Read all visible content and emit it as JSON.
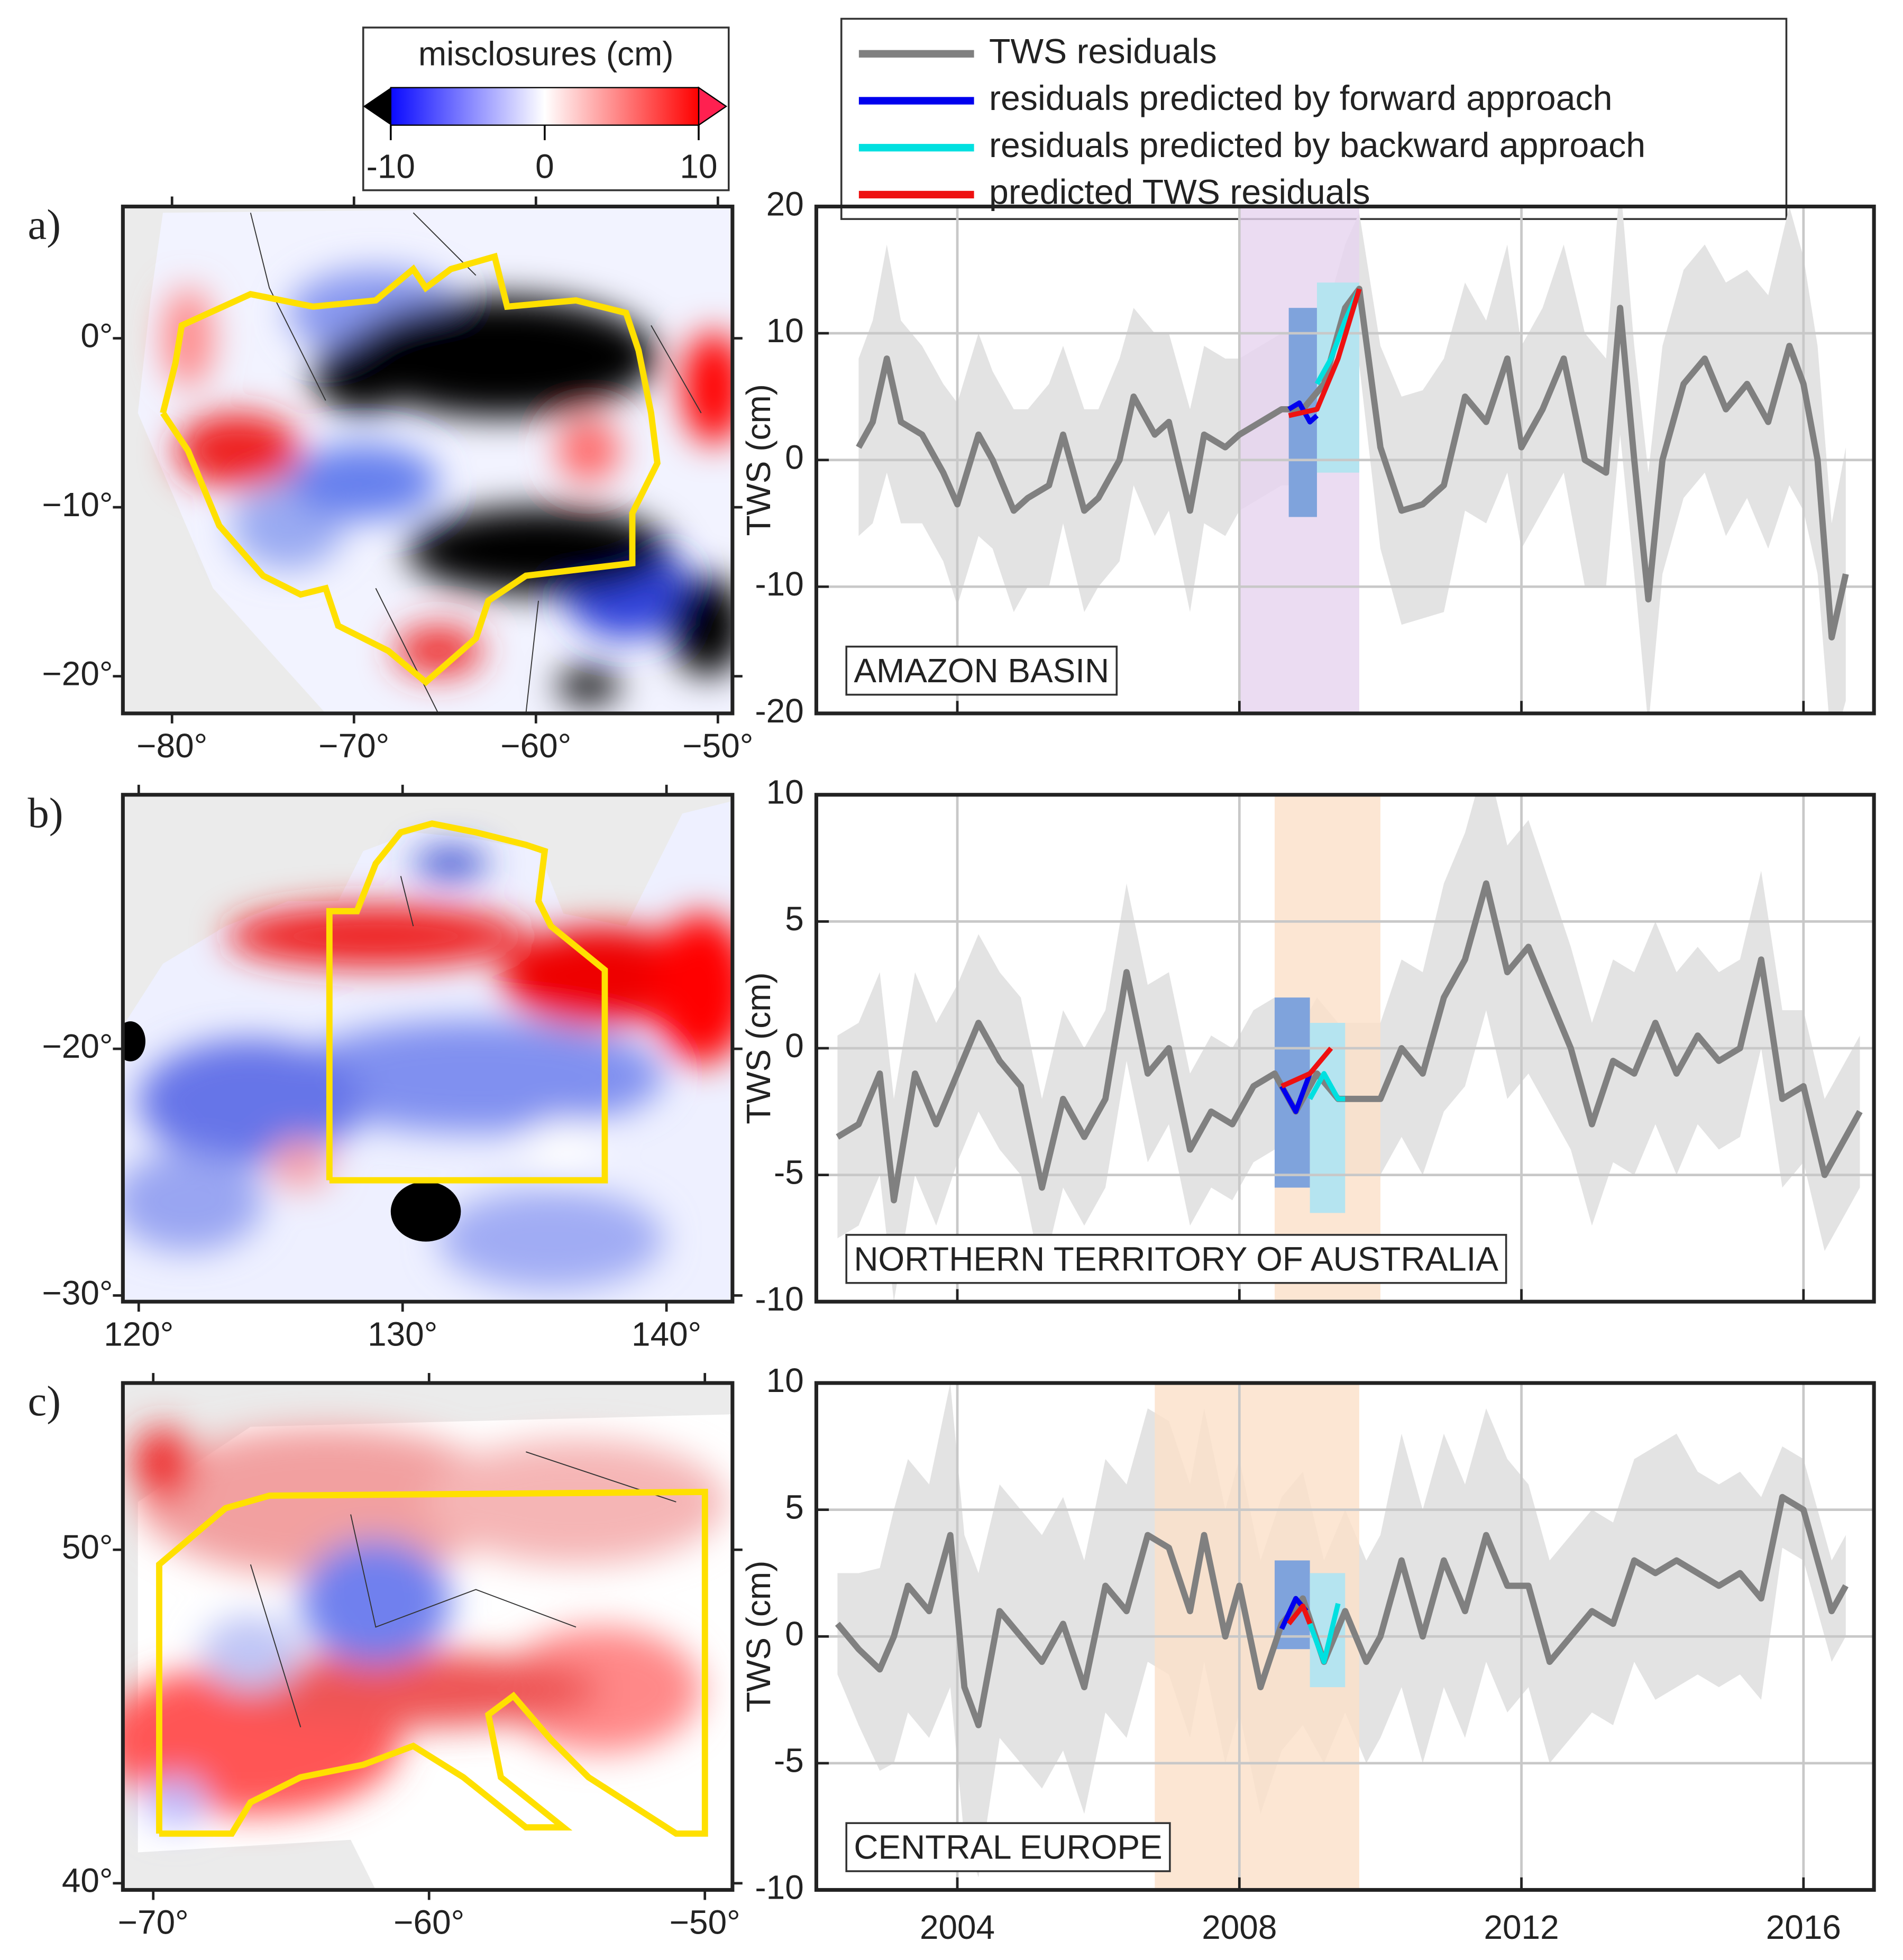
{
  "colorbar": {
    "title": "misclosures (cm)",
    "clim": [
      -10,
      10
    ],
    "ticks": [
      -10,
      0,
      10
    ]
  },
  "time_axis": {
    "xlim": [
      2002,
      2017
    ],
    "xticks": [
      2004,
      2008,
      2012,
      2016
    ]
  },
  "chart_data": [
    {
      "type": "line",
      "label": "a)",
      "region": "AMAZON BASIN",
      "ylabel": "TWS (cm)",
      "ylim": [
        -20,
        20
      ],
      "yticks": [
        -20,
        -10,
        0,
        10,
        20
      ],
      "grid": true,
      "map": {
        "xlim": [
          -82.7,
          -49.2
        ],
        "ylim": [
          -22.2,
          7.8
        ],
        "xticks": [
          {
            "value": -80,
            "label": "−80°"
          },
          {
            "value": -70,
            "label": "−70°"
          },
          {
            "value": -60,
            "label": "−60°"
          },
          {
            "value": -50,
            "label": "−50°"
          }
        ],
        "yticks": [
          {
            "value": 0,
            "label": "0°"
          },
          {
            "value": -10,
            "label": "−10°"
          },
          {
            "value": -20,
            "label": "−20°"
          }
        ]
      },
      "spans": [
        {
          "x": [
            2008,
            2009.7
          ],
          "color": "#e6d3ef"
        }
      ],
      "boxes": [
        {
          "x": [
            2008.7,
            2009.1
          ],
          "y": [
            -4.5,
            12
          ],
          "color": "#7fa3dc"
        },
        {
          "x": [
            2009.1,
            2009.7
          ],
          "y": [
            -1,
            14
          ],
          "color": "#b5e4f0"
        }
      ],
      "series": [
        {
          "name": "TWS residuals",
          "color": "#808080",
          "x": [
            2002.6,
            2002.8,
            2003.0,
            2003.2,
            2003.5,
            2003.8,
            2004.0,
            2004.3,
            2004.5,
            2004.8,
            2005.0,
            2005.3,
            2005.5,
            2005.8,
            2006.0,
            2006.3,
            2006.5,
            2006.8,
            2007.0,
            2007.3,
            2007.5,
            2007.8,
            2008.0,
            2008.3,
            2008.6,
            2008.9,
            2009.2,
            2009.5,
            2009.7,
            2010.0,
            2010.3,
            2010.6,
            2010.9,
            2011.2,
            2011.5,
            2011.8,
            2012.0,
            2012.3,
            2012.6,
            2012.9,
            2013.2,
            2013.4,
            2013.6,
            2013.8,
            2014.0,
            2014.3,
            2014.6,
            2014.9,
            2015.2,
            2015.5,
            2015.8,
            2016.0,
            2016.2,
            2016.4,
            2016.6
          ],
          "values": [
            1,
            3,
            8,
            3,
            2,
            -1,
            -3.5,
            2,
            0,
            -4,
            -3,
            -2,
            2,
            -4,
            -3,
            0,
            5,
            2,
            3,
            -4,
            2,
            1,
            2,
            3,
            4,
            4,
            6,
            12,
            13.5,
            1,
            -4,
            -3.5,
            -2,
            5,
            3,
            8,
            1,
            4,
            8,
            0,
            -1,
            12,
            0,
            -11,
            0,
            6,
            8,
            4,
            6,
            3,
            9,
            6,
            0,
            -14,
            -9
          ],
          "errors": [
            7,
            8,
            9,
            8,
            7,
            7,
            8,
            8,
            7,
            8,
            7,
            8,
            7,
            8,
            7,
            8,
            7,
            8,
            7,
            8,
            7,
            7,
            6,
            6,
            6,
            6,
            5,
            5,
            6,
            8,
            9,
            9,
            10,
            9,
            8,
            9,
            8,
            8,
            9,
            10,
            9,
            10,
            9,
            10,
            9,
            9,
            9,
            10,
            9,
            10,
            11,
            10,
            9,
            9,
            10
          ]
        },
        {
          "name": "residuals predicted by forward approach",
          "color": "#0000ee",
          "x": [
            2008.7,
            2008.85,
            2009.0,
            2009.1
          ],
          "values": [
            4,
            4.5,
            3,
            3.5
          ]
        },
        {
          "name": "residuals predicted by backward approach",
          "color": "#00e0e0",
          "x": [
            2009.1,
            2009.3,
            2009.5,
            2009.7
          ],
          "values": [
            6,
            8,
            11,
            13.5
          ]
        },
        {
          "name": "predicted TWS residuals",
          "color": "#ee1111",
          "x": [
            2008.7,
            2009.1,
            2009.4,
            2009.7
          ],
          "values": [
            3.5,
            4,
            8,
            13.5
          ]
        }
      ]
    },
    {
      "type": "line",
      "label": "b)",
      "region": "NORTHERN TERRITORY OF AUSTRALIA",
      "ylabel": "TWS (cm)",
      "ylim": [
        -10,
        10
      ],
      "yticks": [
        -10,
        -5,
        0,
        5,
        10
      ],
      "grid": true,
      "map": {
        "xlim": [
          119.4,
          142.5
        ],
        "ylim": [
          -30.25,
          -9.7
        ],
        "xticks": [
          {
            "value": 120,
            "label": "120°"
          },
          {
            "value": 130,
            "label": "130°"
          },
          {
            "value": 140,
            "label": "140°"
          }
        ],
        "yticks": [
          {
            "value": -20,
            "label": "−20°"
          },
          {
            "value": -30,
            "label": "−30°"
          }
        ]
      },
      "spans": [
        {
          "x": [
            2008.5,
            2010
          ],
          "color": "#fbe0c8"
        }
      ],
      "boxes": [
        {
          "x": [
            2008.5,
            2009
          ],
          "y": [
            -5.5,
            2
          ],
          "color": "#7fa3dc"
        },
        {
          "x": [
            2009,
            2009.5
          ],
          "y": [
            -6.5,
            1
          ],
          "color": "#b5e4f0"
        }
      ],
      "series": [
        {
          "color": "#808080",
          "x": [
            2002.3,
            2002.6,
            2002.9,
            2003.1,
            2003.4,
            2003.7,
            2004.0,
            2004.3,
            2004.6,
            2004.9,
            2005.2,
            2005.5,
            2005.8,
            2006.1,
            2006.4,
            2006.7,
            2007.0,
            2007.3,
            2007.6,
            2007.9,
            2008.2,
            2008.5,
            2008.8,
            2009.1,
            2009.4,
            2009.7,
            2010.0,
            2010.3,
            2010.6,
            2010.9,
            2011.2,
            2011.5,
            2011.8,
            2012.1,
            2012.4,
            2012.7,
            2013.0,
            2013.3,
            2013.6,
            2013.9,
            2014.2,
            2014.5,
            2014.8,
            2015.1,
            2015.4,
            2015.7,
            2016.0,
            2016.3,
            2016.6,
            2016.8
          ],
          "values": [
            -3.5,
            -3,
            -1,
            -6,
            -1,
            -3,
            -1,
            1,
            -0.5,
            -1.5,
            -5.5,
            -2,
            -3.5,
            -2,
            3,
            -1,
            0,
            -4,
            -2.5,
            -3,
            -1.5,
            -1,
            -2.5,
            -1,
            -2,
            -2,
            -2,
            0,
            -1,
            2,
            3.5,
            6.5,
            3,
            4,
            2,
            0,
            -3,
            -0.5,
            -1,
            1,
            -1,
            0.5,
            -0.5,
            0,
            3.5,
            -2,
            -1.5,
            -5,
            -3.5,
            -2.5
          ],
          "errors": [
            4,
            4,
            4,
            4,
            4,
            4,
            3.5,
            3.5,
            3.5,
            3.5,
            3.5,
            3.5,
            3.5,
            3.5,
            3.5,
            3.5,
            3,
            3,
            3,
            3,
            3,
            3,
            3,
            3,
            3,
            3,
            3,
            3.5,
            4,
            4.5,
            5,
            5,
            5,
            5,
            4.5,
            4,
            4,
            4,
            4,
            4,
            4,
            3.5,
            3.5,
            3.5,
            3.5,
            3.5,
            3,
            3,
            3,
            3
          ]
        },
        {
          "color": "#0000ee",
          "x": [
            2008.6,
            2008.8,
            2009.0
          ],
          "values": [
            -1.5,
            -2.5,
            -1
          ]
        },
        {
          "color": "#00e0e0",
          "x": [
            2009.0,
            2009.2,
            2009.4,
            2009.5
          ],
          "values": [
            -2,
            -1,
            -2,
            -2
          ]
        },
        {
          "color": "#ee1111",
          "x": [
            2008.6,
            2009.0,
            2009.3
          ],
          "values": [
            -1.5,
            -1,
            0
          ]
        }
      ]
    },
    {
      "type": "line",
      "label": "c)",
      "region": "CENTRAL EUROPE",
      "ylabel": "TWS (cm)",
      "ylim": [
        -10,
        10
      ],
      "yticks": [
        -10,
        -5,
        0,
        5,
        10
      ],
      "grid": true,
      "map": {
        "xlim": [
          -71.1,
          -49.0
        ],
        "ylim": [
          39.8,
          55.0
        ],
        "xticks": [
          {
            "value": -70,
            "label": "−70°"
          },
          {
            "value": -60,
            "label": "−60°"
          },
          {
            "value": -50,
            "label": "−50°"
          }
        ],
        "yticks": [
          {
            "value": 50,
            "label": "50°"
          },
          {
            "value": 40,
            "label": "40°"
          }
        ]
      },
      "spans": [
        {
          "x": [
            2006.8,
            2009.7
          ],
          "color": "#fbe0c8"
        }
      ],
      "boxes": [
        {
          "x": [
            2008.5,
            2009
          ],
          "y": [
            -0.5,
            3
          ],
          "color": "#7fa3dc"
        },
        {
          "x": [
            2009,
            2009.5
          ],
          "y": [
            -2,
            2.5
          ],
          "color": "#b5e4f0"
        }
      ],
      "series": [
        {
          "color": "#808080",
          "x": [
            2002.3,
            2002.6,
            2002.9,
            2003.1,
            2003.3,
            2003.6,
            2003.9,
            2004.1,
            2004.3,
            2004.6,
            2004.9,
            2005.2,
            2005.5,
            2005.8,
            2006.1,
            2006.4,
            2006.7,
            2007.0,
            2007.3,
            2007.5,
            2007.8,
            2008.0,
            2008.3,
            2008.6,
            2008.9,
            2009.2,
            2009.5,
            2009.8,
            2010.0,
            2010.3,
            2010.6,
            2010.9,
            2011.2,
            2011.5,
            2011.8,
            2012.1,
            2012.4,
            2012.7,
            2013.0,
            2013.3,
            2013.6,
            2013.9,
            2014.2,
            2014.5,
            2014.8,
            2015.1,
            2015.4,
            2015.7,
            2016.0,
            2016.2,
            2016.4,
            2016.6
          ],
          "values": [
            0.5,
            -0.5,
            -1.3,
            0,
            2,
            1,
            4,
            -2,
            -3.5,
            1,
            0,
            -1,
            0.5,
            -2,
            2,
            1,
            4,
            3.5,
            1,
            4,
            0,
            2,
            -2,
            0.5,
            1.5,
            -1,
            1,
            -1,
            0,
            3,
            0,
            3,
            1,
            4,
            2,
            2,
            -1,
            0,
            1,
            0.5,
            3,
            2.5,
            3,
            2.5,
            2,
            2.5,
            1.5,
            5.5,
            5,
            3,
            1,
            2
          ],
          "errors": [
            2,
            3,
            4,
            5,
            5,
            5,
            6,
            6,
            6,
            5,
            5,
            5,
            5,
            5,
            5,
            5,
            5,
            5,
            5,
            5,
            5,
            5,
            5,
            5,
            5,
            4,
            4,
            4,
            4,
            5,
            5,
            5,
            5,
            5,
            5,
            4,
            4,
            4,
            4,
            4,
            4,
            5,
            5,
            4,
            4,
            4,
            4,
            2,
            2,
            2,
            2,
            2
          ]
        },
        {
          "color": "#0000ee",
          "x": [
            2008.6,
            2008.8,
            2008.95
          ],
          "values": [
            0.3,
            1.5,
            1
          ]
        },
        {
          "color": "#00e0e0",
          "x": [
            2009.0,
            2009.2,
            2009.4
          ],
          "values": [
            0.5,
            -1,
            1.3
          ]
        },
        {
          "color": "#ee1111",
          "x": [
            2008.7,
            2008.9,
            2009.0
          ],
          "values": [
            0.5,
            1.2,
            0.5
          ]
        }
      ]
    }
  ]
}
